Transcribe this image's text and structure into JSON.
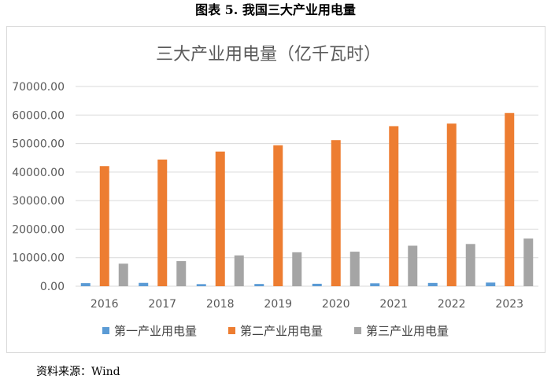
{
  "caption": "图表 5.  我国三大产业用电量",
  "source": "资料来源：Wind",
  "chart_data": {
    "type": "bar",
    "title": "三大产业用电量（亿千瓦时）",
    "categories": [
      "2016",
      "2017",
      "2018",
      "2019",
      "2020",
      "2021",
      "2022",
      "2023"
    ],
    "series": [
      {
        "name": "第一产业用电量",
        "color": "#5b9bd5",
        "values": [
          1075,
          1175,
          730,
          780,
          860,
          1020,
          1150,
          1280
        ]
      },
      {
        "name": "第二产业用电量",
        "color": "#ed7d31",
        "values": [
          42100,
          44400,
          47200,
          49400,
          51200,
          56100,
          57000,
          60700
        ]
      },
      {
        "name": "第三产业用电量",
        "color": "#a5a5a5",
        "values": [
          7900,
          8800,
          10800,
          11900,
          12100,
          14200,
          14800,
          16700
        ]
      }
    ],
    "ylim": [
      0,
      70000
    ],
    "yticks": [
      "0.00",
      "10000.00",
      "20000.00",
      "30000.00",
      "40000.00",
      "50000.00",
      "60000.00",
      "70000.00"
    ],
    "grid": true,
    "legend": "bottom"
  }
}
